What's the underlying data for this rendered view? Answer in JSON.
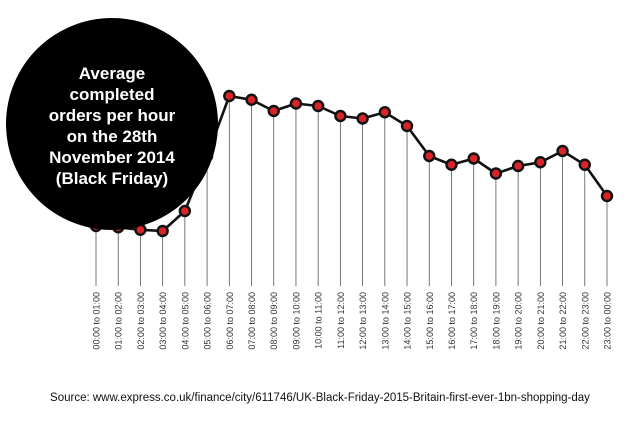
{
  "chart_data": {
    "type": "line",
    "title_lines": [
      "Average",
      "completed",
      "orders per hour",
      "on the 28th",
      "November 2014",
      "(Black Friday)"
    ],
    "categories": [
      "00:00 to 01:00",
      "01:00 to 02:00",
      "02:00 to 03:00",
      "03:00 to 04:00",
      "04:00 to 05:00",
      "05:00 to 06:00",
      "06:00 to 07:00",
      "07:00 to 08:00",
      "08:00 to 09:00",
      "09:00 to 10:00",
      "10:00 to 11:00",
      "11:00 to 12:00",
      "12:00 to 13:00",
      "13:00 to 14:00",
      "14:00 to 15:00",
      "15:00 to 16:00",
      "16:00 to 17:00",
      "17:00 to 18:00",
      "18:00 to 19:00",
      "19:00 to 20:00",
      "20:00 to 21:00",
      "21:00 to 22:00",
      "22:00 to 23:00",
      "23:00 to 00:00"
    ],
    "values": [
      24,
      23.5,
      22.5,
      22,
      30,
      52,
      76,
      74.5,
      70,
      73,
      72,
      68,
      67,
      69.5,
      64,
      52,
      48.5,
      51,
      45,
      48,
      49.5,
      54,
      48.5,
      36
    ],
    "ylim": [
      0,
      100
    ],
    "grid": false,
    "legend": false,
    "colors": {
      "line": "#111111",
      "marker_fill": "#d9242a",
      "marker_stroke": "#111111",
      "drop_line": "#555555",
      "title_bg": "#000000",
      "title_text": "#ffffff"
    }
  },
  "source": "Source: www.express.co.uk/finance/city/611746/UK-Black-Friday-2015-Britain-first-ever-1bn-shopping-day"
}
